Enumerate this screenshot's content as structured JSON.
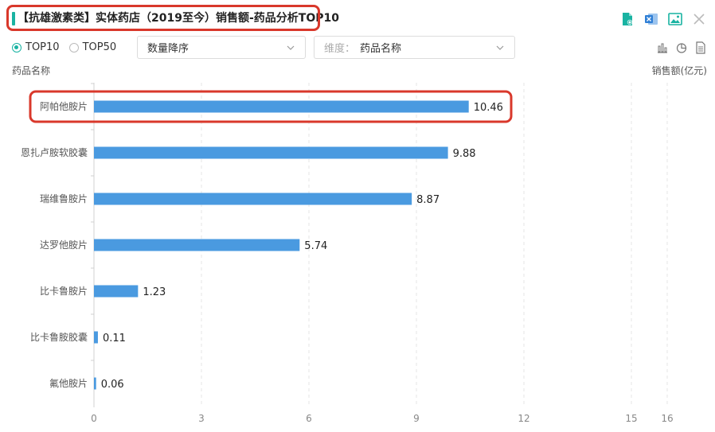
{
  "header": {
    "title": "【抗雄激素类】实体药店（2019至今）销售额-药品分析TOP10",
    "accent_color": "#19b3a2",
    "highlight_color": "#d9382b",
    "icons": [
      "doc-refresh-icon",
      "excel-export-icon",
      "image-export-icon",
      "close-icon"
    ]
  },
  "controls": {
    "radio_top10": "TOP10",
    "radio_top50": "TOP50",
    "selected": "TOP10",
    "sort_select": "数量降序",
    "dimension_prefix": "维度：",
    "dimension_value": "药品名称",
    "view_icons": [
      "bar-chart-icon",
      "pie-chart-icon",
      "table-icon"
    ]
  },
  "chart_data": {
    "type": "bar",
    "orientation": "horizontal",
    "ylabel": "药品名称",
    "xlabel": "销售额(亿元)",
    "categories": [
      "阿帕他胺片",
      "恩扎卢胺软胶囊",
      "瑞维鲁胺片",
      "达罗他胺片",
      "比卡鲁胺片",
      "比卡鲁胺胶囊",
      "氟他胺片"
    ],
    "values": [
      10.46,
      9.88,
      8.87,
      5.74,
      1.23,
      0.11,
      0.06
    ],
    "value_labels": [
      "10.46",
      "9.88",
      "8.87",
      "5.74",
      "1.23",
      "0.11",
      "0.06"
    ],
    "xticks": [
      "0",
      "3",
      "6",
      "9",
      "12",
      "15",
      "16"
    ],
    "xtick_values": [
      0,
      3,
      6,
      9,
      12,
      15,
      16
    ],
    "xlim": [
      0,
      16
    ],
    "bar_color": "#4a9ae0",
    "highlighted_category": "阿帕他胺片",
    "grid": "vertical dashed"
  }
}
